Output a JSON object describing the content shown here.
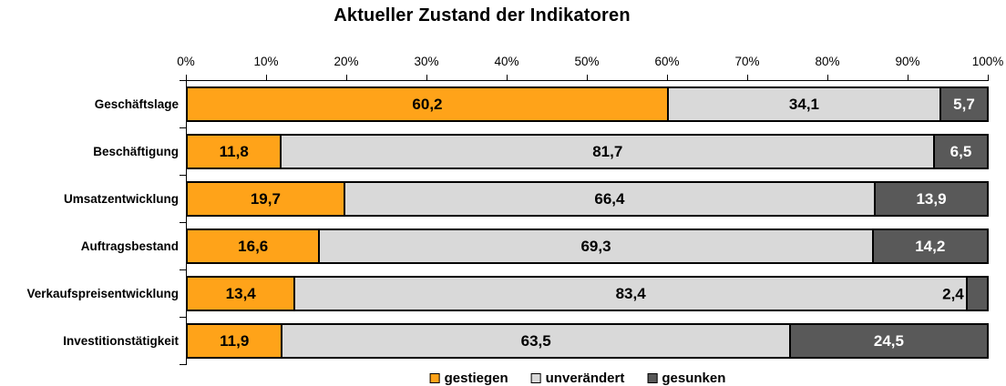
{
  "title": "Aktueller Zustand der Indikatoren",
  "chart_data": {
    "type": "bar",
    "orientation": "horizontal",
    "stacked": true,
    "title": "Aktueller Zustand der Indikatoren",
    "categories": [
      "Geschäftslage",
      "Beschäftigung",
      "Umsatzentwicklung",
      "Auftragsbestand",
      "Verkaufspreisentwicklung",
      "Investitionstätigkeit"
    ],
    "series": [
      {
        "name": "gestiegen",
        "color": "#FFA319",
        "label_color": "#000000",
        "values": [
          60.2,
          11.8,
          19.7,
          16.6,
          13.4,
          11.9
        ]
      },
      {
        "name": "unverändert",
        "color": "#D9D9D9",
        "label_color": "#000000",
        "values": [
          34.1,
          81.7,
          66.4,
          69.3,
          83.4,
          63.5
        ]
      },
      {
        "name": "gesunken",
        "color": "#595959",
        "label_color": "#FFFFFF",
        "values": [
          5.7,
          6.5,
          13.9,
          14.2,
          2.4,
          24.5
        ]
      }
    ],
    "value_labels": true,
    "decimal_separator": ",",
    "x_axis": {
      "position": "top",
      "min": 0,
      "max": 100,
      "tick_labels": [
        "0%",
        "10%",
        "20%",
        "30%",
        "40%",
        "50%",
        "60%",
        "70%",
        "80%",
        "90%",
        "100%"
      ]
    },
    "legend": {
      "position": "bottom",
      "entries": [
        "gestiegen",
        "unverändert",
        "gesunken"
      ]
    },
    "colors": {
      "axis": "#000000",
      "bar_border": "#000000",
      "background": "#FFFFFF"
    }
  }
}
